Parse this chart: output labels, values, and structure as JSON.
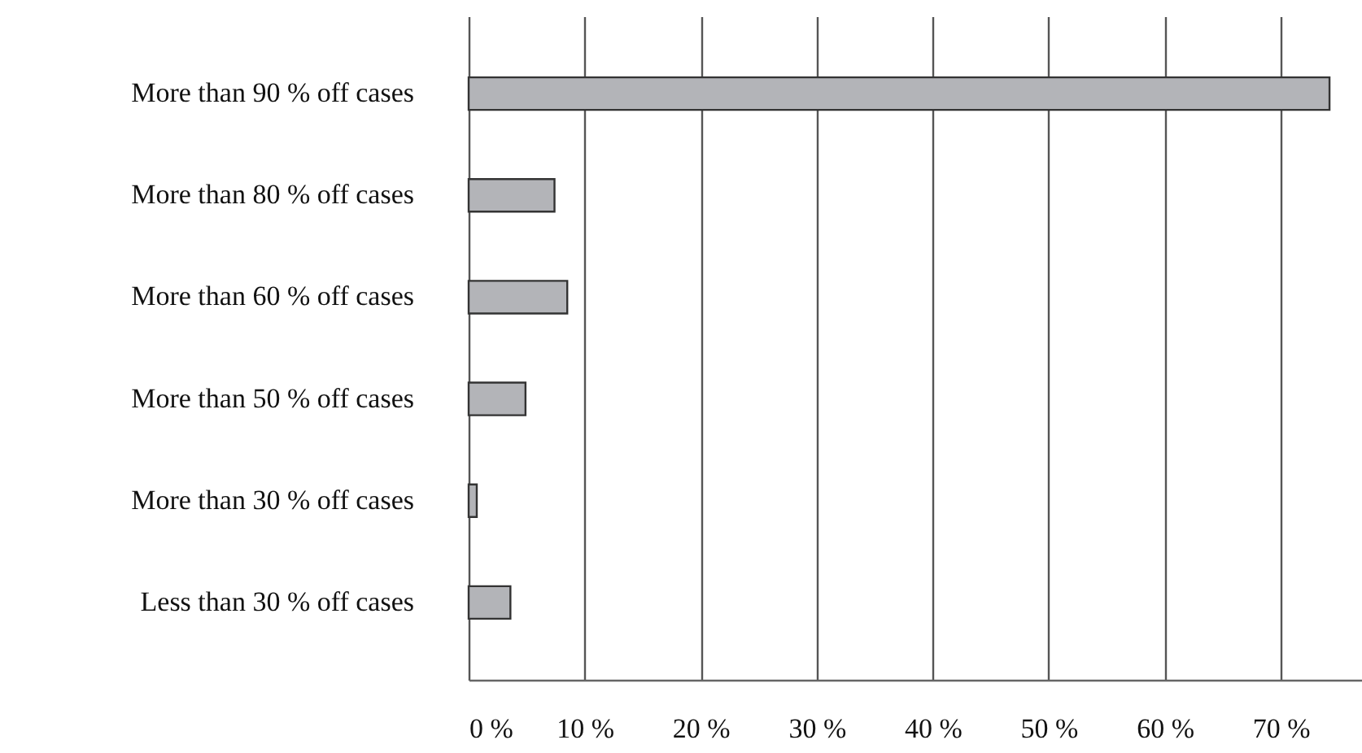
{
  "chart_data": {
    "type": "bar",
    "orientation": "horizontal",
    "categories": [
      "More than 90 % off cases",
      "More than 80 % off cases",
      "More than 60 % off cases",
      "More than 50 % off cases",
      "More than 30 % off cases",
      "Less than 30 % off cases"
    ],
    "values": [
      74.2,
      7.4,
      8.5,
      4.9,
      0.7,
      3.6
    ],
    "color": "#b3b4b8",
    "xlim": [
      0,
      77
    ],
    "xticks": [
      {
        "value": 0,
        "label": "0 %"
      },
      {
        "value": 10,
        "label": "10 %"
      },
      {
        "value": 20,
        "label": "20 %"
      },
      {
        "value": 30,
        "label": "30 %"
      },
      {
        "value": 40,
        "label": "40 %"
      },
      {
        "value": 50,
        "label": "50 %"
      },
      {
        "value": 60,
        "label": "60 %"
      },
      {
        "value": 70,
        "label": "70 %"
      }
    ],
    "grid": "x"
  }
}
